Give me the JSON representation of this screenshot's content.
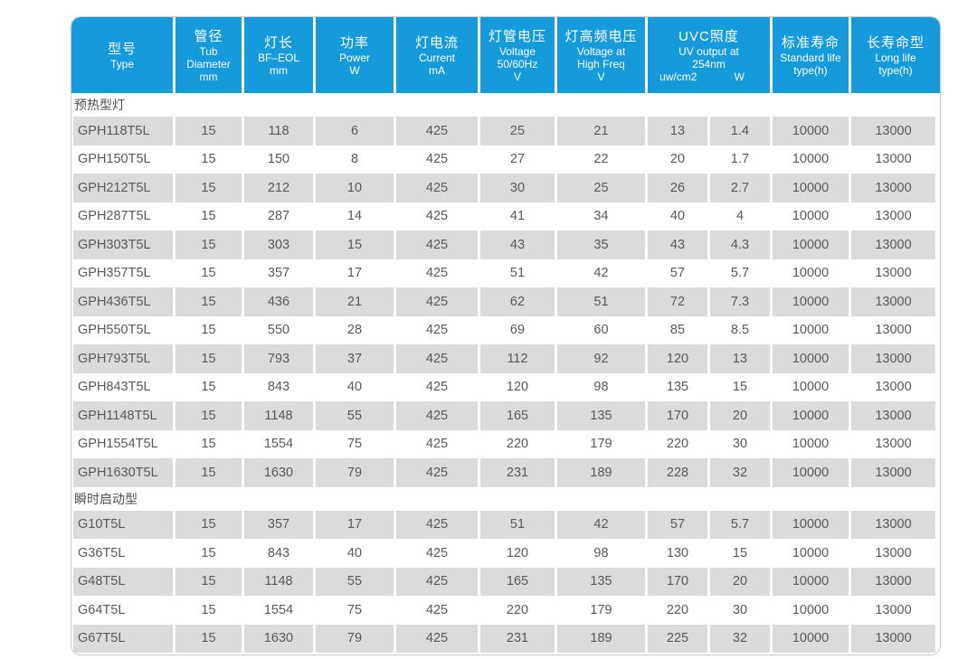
{
  "table": {
    "colors": {
      "header_bg": "#159bdb",
      "header_text": "#ffffff",
      "row_alt_bg": "#dbdbdb",
      "row_bg": "#ffffff",
      "body_text": "#58595b",
      "section_text": "#4f4f4f",
      "border": "#c9c9c9"
    },
    "columns": [
      {
        "id": "type",
        "zh": "型号",
        "en": [
          "Type"
        ]
      },
      {
        "id": "diameter",
        "zh": "管径",
        "en": [
          "Tub",
          "Diameter",
          "mm"
        ]
      },
      {
        "id": "length",
        "zh": "灯长",
        "en": [
          "BF–EOL",
          "mm"
        ]
      },
      {
        "id": "power",
        "zh": "功率",
        "en": [
          "Power",
          "W"
        ]
      },
      {
        "id": "current",
        "zh": "灯电流",
        "en": [
          "Current",
          "mA"
        ]
      },
      {
        "id": "voltage",
        "zh": "灯管电压",
        "en": [
          "Voltage",
          "50/60Hz",
          "V"
        ]
      },
      {
        "id": "hf-voltage",
        "zh": "灯高频电压",
        "en": [
          "Voltage at",
          "High Freq",
          "V"
        ]
      },
      {
        "id": "uvc-output",
        "zh": "UVC照度",
        "en": [
          "UV output at",
          "254nm"
        ],
        "units": [
          "uw/cm2",
          "W"
        ]
      },
      {
        "id": "std-life",
        "zh": "标准寿命",
        "en": [
          "Standard life",
          "type(h)"
        ]
      },
      {
        "id": "long-life",
        "zh": "长寿命型",
        "en": [
          "Long life",
          "type(h)"
        ]
      }
    ],
    "sections": [
      {
        "title": "预热型灯",
        "rows": [
          [
            "GPH118T5L",
            "15",
            "118",
            "6",
            "425",
            "25",
            "21",
            "13",
            "1.4",
            "10000",
            "13000"
          ],
          [
            "GPH150T5L",
            "15",
            "150",
            "8",
            "425",
            "27",
            "22",
            "20",
            "1.7",
            "10000",
            "13000"
          ],
          [
            "GPH212T5L",
            "15",
            "212",
            "10",
            "425",
            "30",
            "25",
            "26",
            "2.7",
            "10000",
            "13000"
          ],
          [
            "GPH287T5L",
            "15",
            "287",
            "14",
            "425",
            "41",
            "34",
            "40",
            "4",
            "10000",
            "13000"
          ],
          [
            "GPH303T5L",
            "15",
            "303",
            "15",
            "425",
            "43",
            "35",
            "43",
            "4.3",
            "10000",
            "13000"
          ],
          [
            "GPH357T5L",
            "15",
            "357",
            "17",
            "425",
            "51",
            "42",
            "57",
            "5.7",
            "10000",
            "13000"
          ],
          [
            "GPH436T5L",
            "15",
            "436",
            "21",
            "425",
            "62",
            "51",
            "72",
            "7.3",
            "10000",
            "13000"
          ],
          [
            "GPH550T5L",
            "15",
            "550",
            "28",
            "425",
            "69",
            "60",
            "85",
            "8.5",
            "10000",
            "13000"
          ],
          [
            "GPH793T5L",
            "15",
            "793",
            "37",
            "425",
            "112",
            "92",
            "120",
            "13",
            "10000",
            "13000"
          ],
          [
            "GPH843T5L",
            "15",
            "843",
            "40",
            "425",
            "120",
            "98",
            "135",
            "15",
            "10000",
            "13000"
          ],
          [
            "GPH1148T5L",
            "15",
            "1148",
            "55",
            "425",
            "165",
            "135",
            "170",
            "20",
            "10000",
            "13000"
          ],
          [
            "GPH1554T5L",
            "15",
            "1554",
            "75",
            "425",
            "220",
            "179",
            "220",
            "30",
            "10000",
            "13000"
          ],
          [
            "GPH1630T5L",
            "15",
            "1630",
            "79",
            "425",
            "231",
            "189",
            "228",
            "32",
            "10000",
            "13000"
          ]
        ]
      },
      {
        "title": "瞬时启动型",
        "rows": [
          [
            "G10T5L",
            "15",
            "357",
            "17",
            "425",
            "51",
            "42",
            "57",
            "5.7",
            "10000",
            "13000"
          ],
          [
            "G36T5L",
            "15",
            "843",
            "40",
            "425",
            "120",
            "98",
            "130",
            "15",
            "10000",
            "13000"
          ],
          [
            "G48T5L",
            "15",
            "1148",
            "55",
            "425",
            "165",
            "135",
            "170",
            "20",
            "10000",
            "13000"
          ],
          [
            "G64T5L",
            "15",
            "1554",
            "75",
            "425",
            "220",
            "179",
            "220",
            "30",
            "10000",
            "13000"
          ],
          [
            "G67T5L",
            "15",
            "1630",
            "79",
            "425",
            "231",
            "189",
            "225",
            "32",
            "10000",
            "13000"
          ]
        ]
      }
    ]
  }
}
